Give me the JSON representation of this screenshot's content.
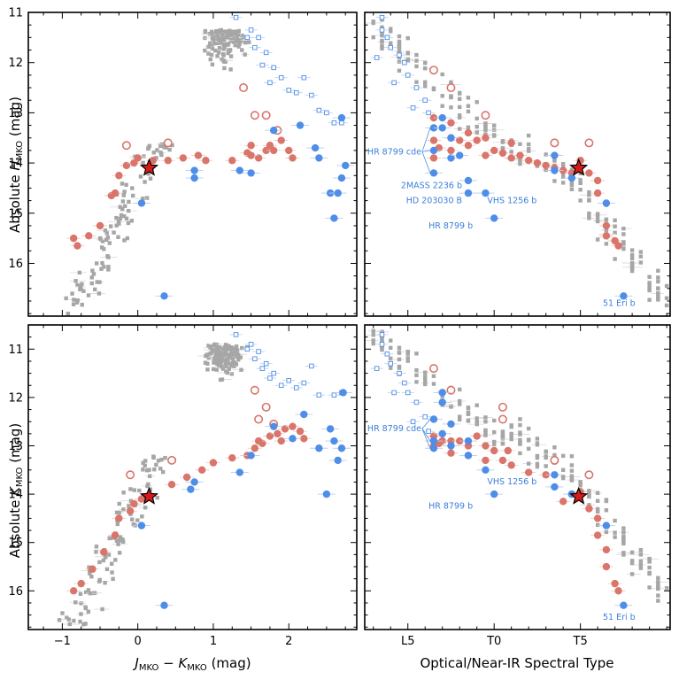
{
  "colors": {
    "field": "#a6a6a6",
    "young_blue": "#4f8ee8",
    "red": "#d9756b",
    "star_fill": "#d41a1a",
    "annotation": "#3b7fd9"
  },
  "chart_data": [
    {
      "id": "tl",
      "type": "scatter",
      "xlabel": "",
      "ylabel": "Absolute H_MKO (mag)",
      "xlim": [
        -1.45,
        2.9
      ],
      "ylim": [
        11,
        17.05
      ],
      "y_inverted": true,
      "xticks": [
        -1,
        0,
        1,
        2
      ],
      "xtick_labels": [],
      "yticks": [
        11,
        12,
        13,
        14,
        15,
        16
      ],
      "ytick_labels": [
        "11",
        "12",
        "13",
        "14",
        "15",
        "16"
      ],
      "star": [
        0.15,
        14.1
      ],
      "red_filled": [
        [
          -0.85,
          15.5
        ],
        [
          -0.65,
          15.45
        ],
        [
          -0.8,
          15.65
        ],
        [
          -0.5,
          15.25
        ],
        [
          -0.35,
          14.65
        ],
        [
          -0.3,
          14.6
        ],
        [
          -0.25,
          14.25
        ],
        [
          -0.15,
          14.05
        ],
        [
          -0.05,
          14.0
        ],
        [
          0.0,
          13.9
        ],
        [
          0.2,
          13.95
        ],
        [
          0.4,
          13.95
        ],
        [
          0.6,
          13.9
        ],
        [
          0.8,
          13.85
        ],
        [
          0.9,
          13.95
        ],
        [
          1.25,
          13.95
        ],
        [
          1.5,
          13.65
        ],
        [
          1.6,
          13.9
        ],
        [
          1.7,
          13.75
        ],
        [
          1.8,
          13.75
        ],
        [
          1.9,
          13.55
        ],
        [
          2.0,
          13.75
        ],
        [
          2.05,
          13.9
        ],
        [
          1.45,
          13.8
        ],
        [
          1.5,
          13.85
        ],
        [
          1.75,
          13.65
        ]
      ],
      "red_open": [
        [
          -0.15,
          13.65
        ],
        [
          0.4,
          13.6
        ],
        [
          1.4,
          12.5
        ],
        [
          1.55,
          13.05
        ],
        [
          1.7,
          13.05
        ],
        [
          1.85,
          13.35
        ]
      ],
      "blue_filled": [
        [
          0.05,
          14.8
        ],
        [
          0.35,
          16.65
        ],
        [
          0.75,
          14.3
        ],
        [
          0.75,
          14.15
        ],
        [
          1.35,
          14.15
        ],
        [
          1.5,
          14.2
        ],
        [
          1.8,
          13.35
        ],
        [
          2.15,
          13.25
        ],
        [
          2.35,
          13.7
        ],
        [
          2.4,
          13.9
        ],
        [
          2.55,
          14.6
        ],
        [
          2.6,
          15.1
        ],
        [
          2.65,
          14.6
        ],
        [
          2.7,
          14.3
        ],
        [
          2.75,
          14.05
        ],
        [
          2.7,
          13.1
        ]
      ],
      "blue_open": [
        [
          1.5,
          11.35
        ],
        [
          1.6,
          11.5
        ],
        [
          1.7,
          11.8
        ],
        [
          1.8,
          12.1
        ],
        [
          1.9,
          12.3
        ],
        [
          2.0,
          12.55
        ],
        [
          2.1,
          12.6
        ],
        [
          2.2,
          12.3
        ],
        [
          2.4,
          12.95
        ],
        [
          2.5,
          13.0
        ],
        [
          2.6,
          13.2
        ],
        [
          2.7,
          13.2
        ],
        [
          1.3,
          11.1
        ],
        [
          1.45,
          11.5
        ],
        [
          1.55,
          11.7
        ],
        [
          1.65,
          12.05
        ],
        [
          1.75,
          12.4
        ],
        [
          2.3,
          12.65
        ]
      ],
      "annotations": []
    },
    {
      "id": "tr",
      "type": "scatter",
      "xlabel": "",
      "ylabel": "",
      "xlim": [
        0.5,
        18.2
      ],
      "ylim": [
        11,
        17.05
      ],
      "y_inverted": true,
      "xticks": [
        3,
        8,
        13
      ],
      "xtick_labels": [],
      "yticks": [
        11,
        12,
        13,
        14,
        15,
        16
      ],
      "ytick_labels": [],
      "star": [
        12.9,
        14.1
      ],
      "red_filled": [
        [
          4.5,
          13.1
        ],
        [
          4.5,
          13.55
        ],
        [
          4.5,
          13.9
        ],
        [
          5.5,
          13.2
        ],
        [
          5.5,
          13.5
        ],
        [
          5.5,
          13.75
        ],
        [
          6.5,
          13.4
        ],
        [
          6.5,
          13.65
        ],
        [
          7.5,
          13.5
        ],
        [
          7.5,
          13.85
        ],
        [
          8.5,
          13.8
        ],
        [
          9,
          13.9
        ],
        [
          9.5,
          13.85
        ],
        [
          10,
          13.95
        ],
        [
          10.5,
          14.0
        ],
        [
          11,
          14.05
        ],
        [
          11.5,
          14.1
        ],
        [
          12,
          14.15
        ],
        [
          12.5,
          14.2
        ],
        [
          13,
          13.95
        ],
        [
          13.5,
          14.2
        ],
        [
          14,
          14.35
        ],
        [
          14,
          14.6
        ],
        [
          14.5,
          15.25
        ],
        [
          14.5,
          15.45
        ],
        [
          15,
          15.55
        ],
        [
          15.2,
          15.65
        ],
        [
          6,
          13.55
        ],
        [
          7,
          13.55
        ],
        [
          8,
          13.75
        ],
        [
          4.8,
          13.7
        ],
        [
          9,
          13.6
        ]
      ],
      "red_open": [
        [
          4.5,
          12.15
        ],
        [
          5.5,
          12.5
        ],
        [
          7.5,
          13.05
        ],
        [
          11.5,
          13.6
        ],
        [
          13.5,
          13.6
        ]
      ],
      "blue_filled": [
        [
          4.5,
          13.3
        ],
        [
          5,
          13.1
        ],
        [
          5,
          13.3
        ],
        [
          5.5,
          13.5
        ],
        [
          4.5,
          13.75
        ],
        [
          5.5,
          13.9
        ],
        [
          6,
          13.85
        ],
        [
          4.5,
          14.2
        ],
        [
          6.5,
          14.35
        ],
        [
          6.5,
          14.6
        ],
        [
          7.5,
          14.6
        ],
        [
          8,
          15.1
        ],
        [
          11.5,
          13.85
        ],
        [
          11.5,
          14.15
        ],
        [
          12.5,
          14.3
        ],
        [
          14.5,
          14.8
        ],
        [
          15.5,
          16.65
        ]
      ],
      "blue_open": [
        [
          1.5,
          11.1
        ],
        [
          1.5,
          11.35
        ],
        [
          1.8,
          11.5
        ],
        [
          2,
          11.7
        ],
        [
          2.5,
          11.85
        ],
        [
          2.8,
          12.0
        ],
        [
          3,
          12.25
        ],
        [
          3.5,
          12.5
        ],
        [
          4,
          12.75
        ],
        [
          4.2,
          13.0
        ],
        [
          1.2,
          11.9
        ],
        [
          2.2,
          12.4
        ],
        [
          3.3,
          12.9
        ]
      ],
      "annotations": [
        {
          "text": "HR 8799 cde",
          "x": 0.65,
          "y": 13.83,
          "anchor": "start"
        },
        {
          "text": "2MASS 2236 b",
          "x": 2.6,
          "y": 14.5,
          "anchor": "start"
        },
        {
          "text": "HD 203030 B",
          "x": 2.9,
          "y": 14.8,
          "anchor": "start"
        },
        {
          "text": "VHS 1256 b",
          "x": 7.6,
          "y": 14.8,
          "anchor": "start"
        },
        {
          "text": "HR 8799 b",
          "x": 4.2,
          "y": 15.3,
          "anchor": "start"
        },
        {
          "text": "51 Eri b",
          "x": 14.3,
          "y": 16.85,
          "anchor": "start"
        }
      ]
    },
    {
      "id": "bl",
      "type": "scatter",
      "xlabel": "J_MKO − K_MKO (mag)",
      "ylabel": "Absolute K_MKO (mag)",
      "xlim": [
        -1.45,
        2.9
      ],
      "ylim": [
        10.5,
        16.8
      ],
      "y_inverted": true,
      "xticks": [
        -1,
        0,
        1,
        2
      ],
      "xtick_labels": [
        "−1",
        "0",
        "1",
        "2"
      ],
      "yticks": [
        11,
        12,
        13,
        14,
        15,
        16
      ],
      "ytick_labels": [
        "11",
        "12",
        "13",
        "14",
        "15",
        "16"
      ],
      "star": [
        0.15,
        14.05
      ],
      "red_filled": [
        [
          -0.85,
          16.0
        ],
        [
          -0.75,
          15.85
        ],
        [
          -0.6,
          15.55
        ],
        [
          -0.45,
          15.2
        ],
        [
          -0.3,
          14.85
        ],
        [
          -0.25,
          14.5
        ],
        [
          -0.1,
          14.35
        ],
        [
          -0.05,
          14.2
        ],
        [
          0.05,
          14.1
        ],
        [
          0.15,
          14.05
        ],
        [
          0.45,
          13.8
        ],
        [
          0.65,
          13.65
        ],
        [
          0.85,
          13.5
        ],
        [
          1.0,
          13.35
        ],
        [
          1.25,
          13.25
        ],
        [
          1.55,
          13.05
        ],
        [
          1.65,
          12.95
        ],
        [
          1.75,
          12.8
        ],
        [
          1.85,
          12.75
        ],
        [
          1.95,
          12.65
        ],
        [
          2.05,
          12.6
        ],
        [
          2.15,
          12.7
        ],
        [
          1.45,
          13.2
        ],
        [
          1.6,
          12.9
        ],
        [
          1.9,
          12.9
        ],
        [
          2.2,
          12.85
        ]
      ],
      "red_open": [
        [
          -0.1,
          13.6
        ],
        [
          0.45,
          13.3
        ],
        [
          1.55,
          11.85
        ],
        [
          1.6,
          12.45
        ],
        [
          1.7,
          12.2
        ],
        [
          1.8,
          12.55
        ]
      ],
      "blue_filled": [
        [
          0.05,
          14.65
        ],
        [
          0.35,
          16.3
        ],
        [
          0.7,
          13.9
        ],
        [
          0.75,
          13.75
        ],
        [
          1.35,
          13.55
        ],
        [
          1.5,
          13.2
        ],
        [
          1.8,
          12.6
        ],
        [
          2.05,
          12.85
        ],
        [
          2.2,
          12.35
        ],
        [
          2.4,
          13.05
        ],
        [
          2.5,
          14.0
        ],
        [
          2.55,
          12.65
        ],
        [
          2.6,
          12.9
        ],
        [
          2.65,
          13.3
        ],
        [
          2.7,
          13.05
        ],
        [
          2.72,
          11.9
        ]
      ],
      "blue_open": [
        [
          1.5,
          10.9
        ],
        [
          1.6,
          11.05
        ],
        [
          1.7,
          11.3
        ],
        [
          1.8,
          11.5
        ],
        [
          1.9,
          11.75
        ],
        [
          2.0,
          11.65
        ],
        [
          2.1,
          11.8
        ],
        [
          2.3,
          11.35
        ],
        [
          2.4,
          11.95
        ],
        [
          2.6,
          11.95
        ],
        [
          2.7,
          11.9
        ],
        [
          1.3,
          10.7
        ],
        [
          1.45,
          11.0
        ],
        [
          1.55,
          11.2
        ],
        [
          1.65,
          11.4
        ],
        [
          1.75,
          11.6
        ],
        [
          2.2,
          11.7
        ]
      ],
      "annotations": []
    },
    {
      "id": "br",
      "type": "scatter",
      "xlabel": "Optical/Near-IR Spectral Type",
      "ylabel": "",
      "xlim": [
        0.5,
        18.2
      ],
      "ylim": [
        10.5,
        16.8
      ],
      "y_inverted": true,
      "xticks": [
        3,
        8,
        13
      ],
      "xtick_labels": [
        "L5",
        "T0",
        "T5"
      ],
      "yticks": [
        11,
        12,
        13,
        14,
        15,
        16
      ],
      "ytick_labels": [],
      "star": [
        12.9,
        14.05
      ],
      "red_filled": [
        [
          4.5,
          12.8
        ],
        [
          4.5,
          13.0
        ],
        [
          5,
          12.9
        ],
        [
          5.5,
          12.9
        ],
        [
          5.5,
          13.15
        ],
        [
          6,
          12.9
        ],
        [
          6.5,
          13.0
        ],
        [
          6.5,
          13.2
        ],
        [
          7,
          12.8
        ],
        [
          7.5,
          13.0
        ],
        [
          7.5,
          13.3
        ],
        [
          8,
          13.1
        ],
        [
          8.5,
          13.3
        ],
        [
          9,
          13.4
        ],
        [
          10,
          13.55
        ],
        [
          11,
          13.6
        ],
        [
          12,
          14.15
        ],
        [
          12.5,
          14.0
        ],
        [
          13,
          13.95
        ],
        [
          13.5,
          14.3
        ],
        [
          14,
          14.5
        ],
        [
          14,
          14.85
        ],
        [
          14.5,
          15.15
        ],
        [
          14.5,
          15.5
        ],
        [
          15,
          15.85
        ],
        [
          15.2,
          16.0
        ],
        [
          4.8,
          12.95
        ],
        [
          8.8,
          13.1
        ]
      ],
      "red_open": [
        [
          4.5,
          11.4
        ],
        [
          5.5,
          11.85
        ],
        [
          8.5,
          12.2
        ],
        [
          8.5,
          12.45
        ],
        [
          11.5,
          13.3
        ],
        [
          13.5,
          13.6
        ]
      ],
      "blue_filled": [
        [
          4.5,
          12.45
        ],
        [
          5,
          11.9
        ],
        [
          5,
          12.1
        ],
        [
          4.5,
          12.9
        ],
        [
          5.5,
          12.55
        ],
        [
          5,
          12.75
        ],
        [
          5.5,
          13.0
        ],
        [
          4.5,
          13.05
        ],
        [
          6.5,
          12.9
        ],
        [
          6.5,
          13.2
        ],
        [
          7.5,
          13.5
        ],
        [
          8,
          14.0
        ],
        [
          11.5,
          13.6
        ],
        [
          11.5,
          13.85
        ],
        [
          12.5,
          14.0
        ],
        [
          14.5,
          14.65
        ],
        [
          15.5,
          16.3
        ]
      ],
      "blue_open": [
        [
          1.5,
          10.7
        ],
        [
          1.5,
          10.9
        ],
        [
          1.8,
          11.1
        ],
        [
          2,
          11.3
        ],
        [
          2.5,
          11.5
        ],
        [
          2.8,
          11.7
        ],
        [
          3,
          11.9
        ],
        [
          3.5,
          12.1
        ],
        [
          4,
          12.4
        ],
        [
          4.2,
          12.7
        ],
        [
          1.2,
          11.4
        ],
        [
          2.2,
          11.9
        ],
        [
          3.3,
          12.5
        ]
      ],
      "annotations": [
        {
          "text": "HR 8799 cde",
          "x": 0.65,
          "y": 12.7,
          "anchor": "start"
        },
        {
          "text": "VHS 1256 b",
          "x": 7.6,
          "y": 13.8,
          "anchor": "start"
        },
        {
          "text": "HR 8799 b",
          "x": 4.2,
          "y": 14.3,
          "anchor": "start"
        },
        {
          "text": "51 Eri b",
          "x": 14.3,
          "y": 16.6,
          "anchor": "start"
        }
      ]
    }
  ]
}
